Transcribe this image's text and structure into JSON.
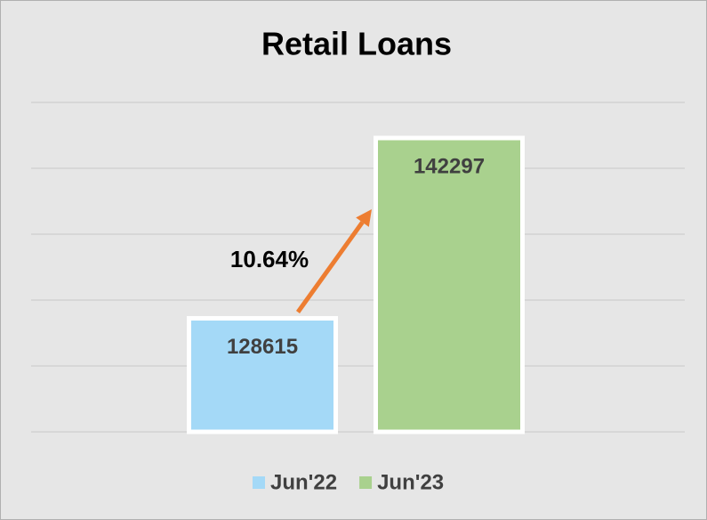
{
  "chart_data": {
    "type": "bar",
    "title": "Retail Loans",
    "series": [
      {
        "name": "Jun'22",
        "color": "#a4d9f7",
        "values": [
          128615
        ]
      },
      {
        "name": "Jun'23",
        "color": "#a9d18e",
        "values": [
          142297
        ]
      }
    ],
    "ylim": [
      120000,
      145000
    ],
    "yticks": [
      120000,
      125000,
      130000,
      135000,
      140000,
      145000
    ],
    "grid": true,
    "annotation": "10.64%",
    "annotation_color": "#ed7d31",
    "legend": "bottom"
  }
}
